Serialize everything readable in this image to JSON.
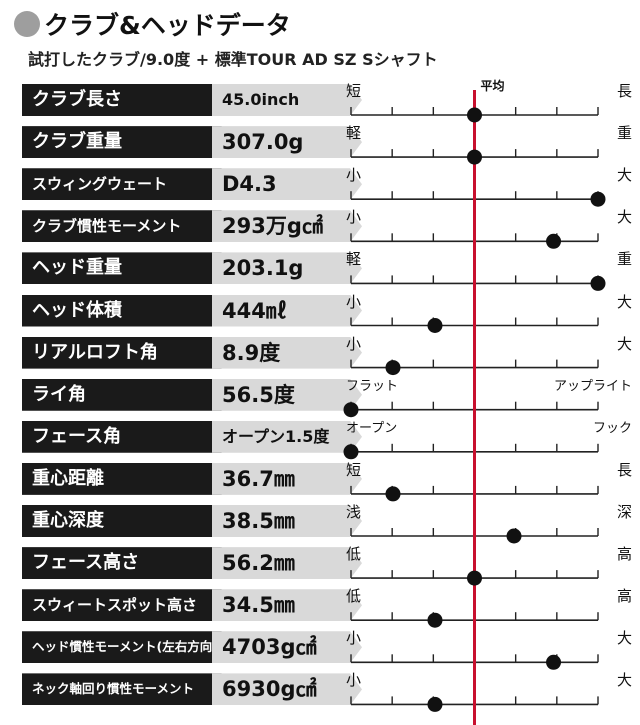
{
  "header": {
    "title": "クラブ&ヘッドデータ",
    "subtitle": "試打したクラブ/9.0度 + 標準TOUR AD SZ Sシャフト"
  },
  "chart_data": {
    "type": "scatter",
    "title": "クラブ&ヘッドデータ",
    "average_label": "平均",
    "scale_range": [
      0,
      100
    ],
    "average_value": 50,
    "accent_color": "#c8102e",
    "rows": [
      {
        "label": "クラブ長さ",
        "value": "45.0inch",
        "low": "短",
        "high": "長",
        "position": 50
      },
      {
        "label": "クラブ重量",
        "value": "307.0g",
        "low": "軽",
        "high": "重",
        "position": 50
      },
      {
        "label": "スウィングウェート",
        "value": "D4.3",
        "low": "小",
        "high": "大",
        "position": 100
      },
      {
        "label": "クラブ慣性モーメント",
        "value": "293万g㎠",
        "low": "小",
        "high": "大",
        "position": 82
      },
      {
        "label": "ヘッド重量",
        "value": "203.1g",
        "low": "軽",
        "high": "重",
        "position": 100
      },
      {
        "label": "ヘッド体積",
        "value": "444㎖",
        "low": "小",
        "high": "大",
        "position": 34
      },
      {
        "label": "リアルロフト角",
        "value": "8.9度",
        "low": "小",
        "high": "大",
        "position": 17
      },
      {
        "label": "ライ角",
        "value": "56.5度",
        "low": "フラット",
        "high": "アップライト",
        "position": 0
      },
      {
        "label": "フェース角",
        "value": "オープン1.5度",
        "low": "オープン",
        "high": "フック",
        "position": 0
      },
      {
        "label": "重心距離",
        "value": "36.7㎜",
        "low": "短",
        "high": "長",
        "position": 17
      },
      {
        "label": "重心深度",
        "value": "38.5㎜",
        "low": "浅",
        "high": "深",
        "position": 66
      },
      {
        "label": "フェース高さ",
        "value": "56.2㎜",
        "low": "低",
        "high": "高",
        "position": 50
      },
      {
        "label": "スウィートスポット高さ",
        "value": "34.5㎜",
        "low": "低",
        "high": "高",
        "position": 34
      },
      {
        "label": "ヘッド慣性モーメント(左右方向)",
        "value": "4703g㎠",
        "low": "小",
        "high": "大",
        "position": 82
      },
      {
        "label": "ネック軸回り慣性モーメント",
        "value": "6930g㎠",
        "low": "小",
        "high": "大",
        "position": 34
      }
    ]
  }
}
